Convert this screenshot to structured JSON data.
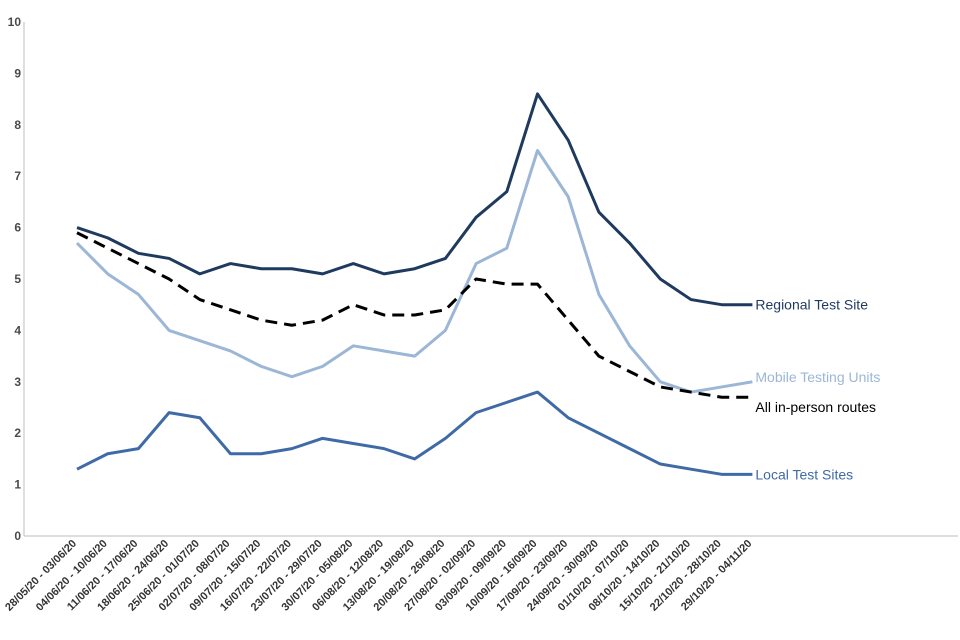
{
  "chart_data": {
    "type": "line",
    "title": "",
    "xlabel": "",
    "ylabel": "",
    "ylim": [
      0,
      10
    ],
    "yticks": [
      "0",
      "1",
      "2",
      "3",
      "4",
      "5",
      "6",
      "7",
      "8",
      "9",
      "10"
    ],
    "grid": false,
    "categories": [
      "28/05/20 - 03/06/20",
      "04/06/20 - 10/06/20",
      "11/06/20 - 17/06/20",
      "18/06/20 - 24/06/20",
      "25/06/20 - 01/07/20",
      "02/07/20 - 08/07/20",
      "09/07/20 - 15/07/20",
      "16/07/20 - 22/07/20",
      "23/07/20 - 29/07/20",
      "30/07/20 - 05/08/20",
      "06/08/20 - 12/08/20",
      "13/08/20 - 19/08/20",
      "20/08/20 - 26/08/20",
      "27/08/20 - 02/09/20",
      "03/09/20 - 09/09/20",
      "10/09/20 - 16/09/20",
      "17/09/20 - 23/09/20",
      "24/09/20 - 30/09/20",
      "01/10/20 - 07/10/20",
      "08/10/20 - 14/10/20",
      "15/10/20 - 21/10/20",
      "22/10/20 - 28/10/20",
      "29/10/20 - 04/11/20"
    ],
    "series": [
      {
        "name": "Regional Test Site",
        "color": "#1f3a5f",
        "dash": false,
        "values": [
          6.0,
          5.8,
          5.5,
          5.4,
          5.1,
          5.3,
          5.2,
          5.2,
          5.1,
          5.3,
          5.1,
          5.2,
          5.4,
          6.2,
          6.7,
          8.6,
          7.7,
          6.3,
          5.7,
          5.0,
          4.6,
          4.5,
          4.5
        ]
      },
      {
        "name": "Mobile Testing Units",
        "color": "#9bb6d6",
        "dash": false,
        "values": [
          5.7,
          5.1,
          4.7,
          4.0,
          3.8,
          3.6,
          3.3,
          3.1,
          3.3,
          3.7,
          3.6,
          3.5,
          4.0,
          5.3,
          5.6,
          7.5,
          6.6,
          4.7,
          3.7,
          3.0,
          2.8,
          2.9,
          3.0
        ]
      },
      {
        "name": "All in-person routes",
        "color": "#000000",
        "dash": true,
        "values": [
          5.9,
          5.6,
          5.3,
          5.0,
          4.6,
          4.4,
          4.2,
          4.1,
          4.2,
          4.5,
          4.3,
          4.3,
          4.4,
          5.0,
          4.9,
          4.9,
          4.2,
          3.5,
          3.2,
          2.9,
          2.8,
          2.7,
          2.7
        ]
      },
      {
        "name": "Local Test Sites",
        "color": "#3f6aa8",
        "dash": false,
        "values": [
          1.3,
          1.6,
          1.7,
          2.4,
          2.3,
          1.6,
          1.6,
          1.7,
          1.9,
          1.8,
          1.7,
          1.5,
          1.9,
          2.4,
          2.6,
          2.8,
          2.3,
          2.0,
          1.7,
          1.4,
          1.3,
          1.2,
          1.2
        ]
      }
    ]
  }
}
